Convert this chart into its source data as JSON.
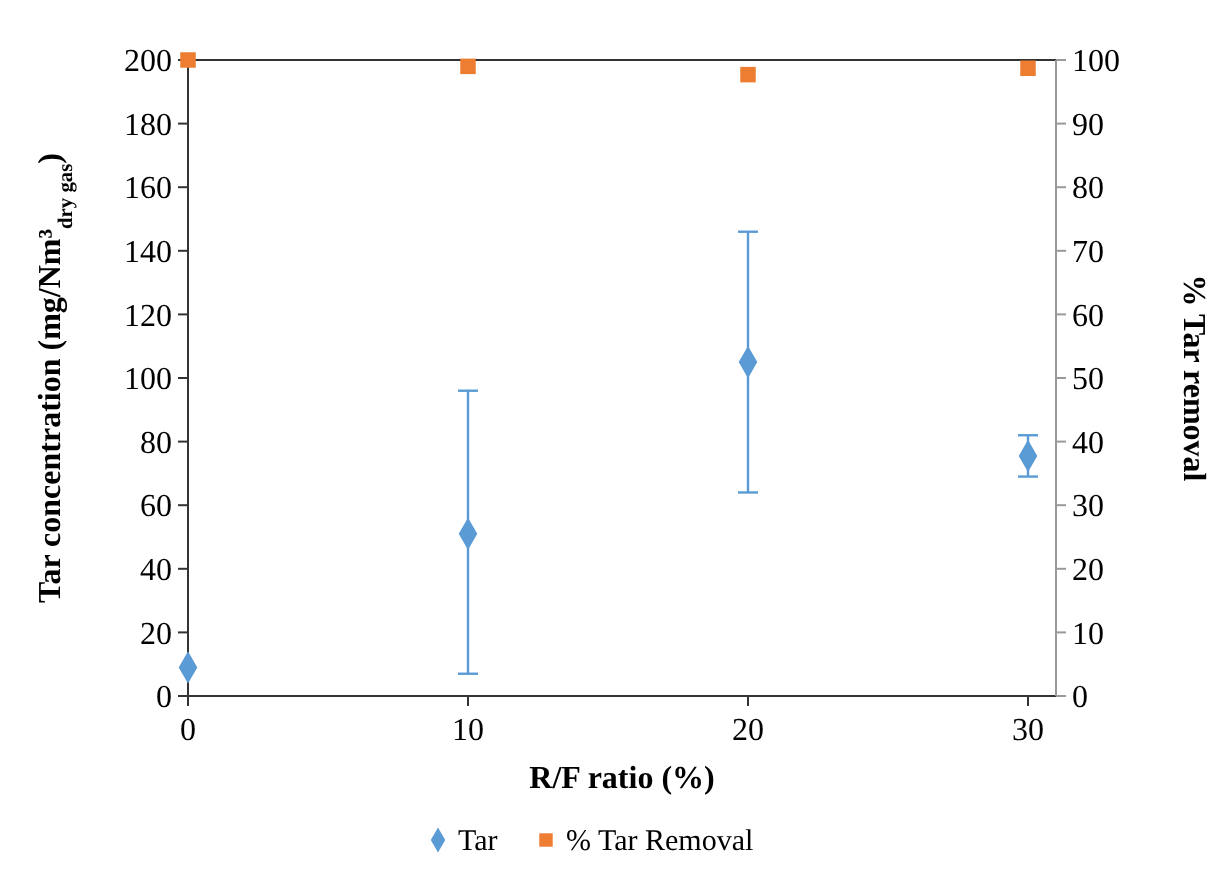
{
  "chart_data": {
    "type": "scatter",
    "xlabel": "R/F ratio (%)",
    "ylabel": "Tar concentration (mg/Nm³$_{dry gas}$)",
    "y2label": "% Tar removal",
    "x": [
      0,
      10,
      20,
      30
    ],
    "xlim": [
      0,
      31
    ],
    "xticks": [
      0,
      10,
      20,
      30
    ],
    "ylim": [
      0,
      200
    ],
    "yticks": [
      0,
      20,
      40,
      60,
      80,
      100,
      120,
      140,
      160,
      180,
      200
    ],
    "y2lim": [
      0,
      100
    ],
    "y2ticks": [
      0,
      10,
      20,
      30,
      40,
      50,
      60,
      70,
      80,
      90,
      100
    ],
    "series": [
      {
        "name": "Tar",
        "color": "#5b9bd5",
        "marker": "diamond",
        "values": [
          9,
          51,
          105,
          75.5
        ],
        "errors": [
          null,
          [
            7,
            96
          ],
          [
            64,
            146
          ],
          [
            69,
            82
          ]
        ]
      },
      {
        "name": "% Tar Removal",
        "color": "#ed7d31",
        "marker": "square",
        "axis": "y2",
        "values": [
          100,
          99,
          97.7,
          98.7
        ]
      }
    ],
    "grid": false,
    "legend": "bottom"
  }
}
